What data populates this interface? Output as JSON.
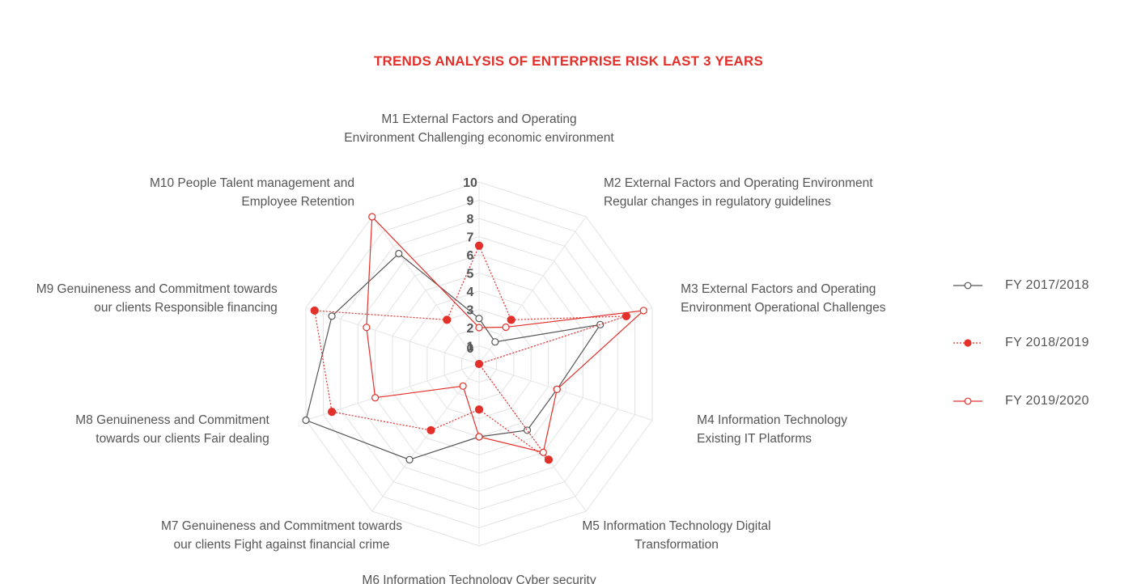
{
  "chart_data": {
    "type": "radar",
    "title": "TRENDS ANALYSIS OF ENTERPRISE RISK LAST 3 YEARS",
    "categories": [
      "M1 External Factors and Operating Environment Challenging economic environment",
      "M2 External Factors and Operating Environment Regular changes in regulatory guidelines",
      "M3 External Factors and Operating Environment Operational Challenges",
      "M4 Information Technology Existing IT Platforms",
      "M5 Information Technology Digital Transformation",
      "M6 Information Technology Cyber security",
      "M7 Genuineness and Commitment towards our clients Fight against financial crime",
      "M8 Genuineness and Commitment towards our clients Fair dealing",
      "M9 Genuineness and Commitment towards our clients Responsible financing",
      "M10 People Talent management and Employee Retention"
    ],
    "category_label_lines": [
      [
        "M1 External Factors and Operating",
        "Environment Challenging economic environment"
      ],
      [
        "M2 External Factors and Operating Environment",
        "Regular changes in regulatory guidelines"
      ],
      [
        "M3 External Factors and Operating",
        "Environment Operational Challenges"
      ],
      [
        "M4 Information Technology",
        "Existing IT Platforms"
      ],
      [
        "M5 Information Technology Digital",
        "Transformation"
      ],
      [
        "M6 Information Technology Cyber security"
      ],
      [
        "M7 Genuineness and Commitment towards",
        "our clients Fight against financial crime"
      ],
      [
        "M8 Genuineness and Commitment",
        "towards our clients Fair dealing"
      ],
      [
        "M9 Genuineness and Commitment towards",
        "our clients Responsible financing"
      ],
      [
        "M10 People Talent management and",
        "Employee Retention"
      ]
    ],
    "r_range": [
      0,
      10
    ],
    "r_ticks": [
      "0",
      "1",
      "2",
      "3",
      "4",
      "5",
      "6",
      "7",
      "8",
      "9",
      "10"
    ],
    "series": [
      {
        "name": "FY 2017/2018",
        "values": [
          2.5,
          1.5,
          7.0,
          4.5,
          4.5,
          4.0,
          6.5,
          10.0,
          8.5,
          7.5
        ],
        "color": "#555555",
        "line_style": "solid",
        "marker": "open-circle"
      },
      {
        "name": "FY 2018/2019",
        "values": [
          6.5,
          3.0,
          8.5,
          0.0,
          6.5,
          2.5,
          4.5,
          8.5,
          9.5,
          3.0
        ],
        "color": "#e2302b",
        "line_style": "dotted",
        "marker": "filled-circle"
      },
      {
        "name": "FY 2019/2020",
        "values": [
          2.0,
          2.5,
          9.5,
          4.5,
          6.0,
          4.0,
          1.5,
          6.0,
          6.5,
          10.0
        ],
        "color": "#e2302b",
        "line_style": "solid",
        "marker": "open-circle"
      }
    ],
    "legend_position": "right"
  }
}
